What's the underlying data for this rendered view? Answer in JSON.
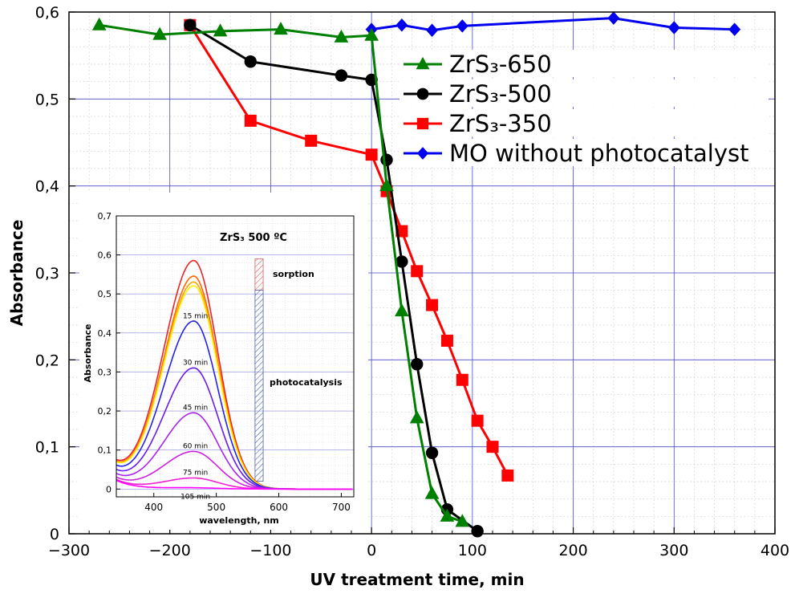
{
  "chart_data": [
    {
      "type": "line",
      "title": "",
      "xlabel": "UV treatment time, min",
      "ylabel": "Absorbance",
      "xlim": [
        -300,
        400
      ],
      "ylim": [
        0,
        0.6
      ],
      "x_ticks": [
        -300,
        -200,
        -100,
        0,
        100,
        200,
        300,
        400
      ],
      "x_tick_labels": [
        "−300",
        "−200",
        "−100",
        "0",
        "100",
        "200",
        "300",
        "400"
      ],
      "y_ticks": [
        0,
        0.1,
        0.2,
        0.3,
        0.4,
        0.5,
        0.6
      ],
      "y_tick_labels": [
        "0",
        "0,1",
        "0,2",
        "0,3",
        "0,4",
        "0,5",
        "0,6"
      ],
      "grid": true,
      "legend_position": "top-right",
      "series": [
        {
          "name": "ZrS₃-650",
          "color": "#008000",
          "marker": "triangle",
          "x": [
            -270,
            -210,
            -150,
            -90,
            -30,
            0,
            15,
            30,
            45,
            60,
            75,
            90
          ],
          "y": [
            0.585,
            0.574,
            0.578,
            0.58,
            0.571,
            0.573,
            0.4,
            0.256,
            0.133,
            0.046,
            0.02,
            0.014
          ]
        },
        {
          "name": "ZrS₃-500",
          "color": "#000000",
          "marker": "circle",
          "x": [
            -180,
            -120,
            -30,
            0,
            15,
            30,
            45,
            60,
            75,
            105
          ],
          "y": [
            0.585,
            0.543,
            0.527,
            0.522,
            0.43,
            0.313,
            0.195,
            0.093,
            0.028,
            0.003
          ]
        },
        {
          "name": "ZrS₃-350",
          "color": "#ff0000",
          "marker": "square",
          "x": [
            -180,
            -120,
            -60,
            0,
            15,
            30,
            45,
            60,
            75,
            90,
            105,
            120,
            135
          ],
          "y": [
            0.585,
            0.475,
            0.452,
            0.436,
            0.394,
            0.348,
            0.302,
            0.263,
            0.222,
            0.177,
            0.13,
            0.1,
            0.067
          ]
        },
        {
          "name": "MO without photocatalyst",
          "color": "#0000ee",
          "marker": "diamond",
          "x": [
            0,
            30,
            60,
            90,
            240,
            300,
            360
          ],
          "y": [
            0.58,
            0.585,
            0.579,
            0.584,
            0.593,
            0.582,
            0.58
          ]
        }
      ]
    },
    {
      "type": "line",
      "title": "ZrS₃ 500 ºC",
      "xlabel": "wavelength, nm",
      "ylabel": "Absorbance",
      "xlim": [
        340,
        720
      ],
      "ylim": [
        -0.02,
        0.7
      ],
      "x_ticks": [
        400,
        500,
        600,
        700
      ],
      "x_tick_labels": [
        "400",
        "500",
        "600",
        "700"
      ],
      "y_ticks": [
        0,
        0.1,
        0.2,
        0.3,
        0.4,
        0.5,
        0.6,
        0.7
      ],
      "y_tick_labels": [
        "0",
        "0,1",
        "0,2",
        "0,3",
        "0,4",
        "0,5",
        "0,6",
        "0,7"
      ],
      "grid": true,
      "peak_wavelength": 464,
      "annotations": [
        "sorption",
        "photocatalysis"
      ],
      "series": [
        {
          "name": "",
          "color": "#ee2222",
          "peak": 0.585
        },
        {
          "name": "",
          "color": "#ff6600",
          "peak": 0.545
        },
        {
          "name": "",
          "color": "#ffa500",
          "peak": 0.53
        },
        {
          "name": "",
          "color": "#ffee00",
          "peak": 0.52
        },
        {
          "name": "15 min",
          "color": "#2222ee",
          "peak": 0.43
        },
        {
          "name": "30 min",
          "color": "#6a1aee",
          "peak": 0.31
        },
        {
          "name": "45 min",
          "color": "#aa22ee",
          "peak": 0.195
        },
        {
          "name": "60 min",
          "color": "#cc22dd",
          "peak": 0.096
        },
        {
          "name": "75 min",
          "color": "#ee22cc",
          "peak": 0.028
        },
        {
          "name": "105 min",
          "color": "#ff00ff",
          "peak": 0.003
        }
      ],
      "sorption_range": [
        0.51,
        0.59
      ],
      "photocatalysis_range": [
        0.02,
        0.51
      ]
    }
  ]
}
